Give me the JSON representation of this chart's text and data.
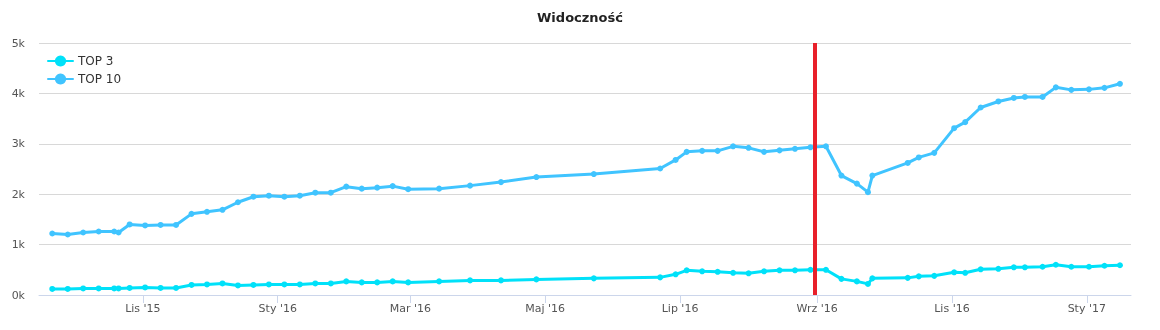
{
  "chart_data": {
    "type": "line",
    "title": "Widoczność",
    "x": [
      "2015-09-21",
      "2015-09-28",
      "2015-10-05",
      "2015-10-12",
      "2015-10-19",
      "2015-10-21",
      "2015-10-26",
      "2015-11-02",
      "2015-11-09",
      "2015-11-16",
      "2015-11-23",
      "2015-11-30",
      "2015-12-07",
      "2015-12-14",
      "2015-12-21",
      "2015-12-28",
      "2016-01-04",
      "2016-01-11",
      "2016-01-18",
      "2016-01-25",
      "2016-02-01",
      "2016-02-08",
      "2016-02-15",
      "2016-02-22",
      "2016-02-29",
      "2016-03-14",
      "2016-03-28",
      "2016-04-11",
      "2016-04-27",
      "2016-05-23",
      "2016-06-22",
      "2016-06-29",
      "2016-07-04",
      "2016-07-11",
      "2016-07-18",
      "2016-07-25",
      "2016-08-01",
      "2016-08-08",
      "2016-08-15",
      "2016-08-22",
      "2016-08-29",
      "2016-09-05",
      "2016-09-12",
      "2016-09-19",
      "2016-09-24",
      "2016-09-26",
      "2016-10-12",
      "2016-10-17",
      "2016-10-24",
      "2016-11-02",
      "2016-11-07",
      "2016-11-14",
      "2016-11-22",
      "2016-11-29",
      "2016-12-04",
      "2016-12-12",
      "2016-12-18",
      "2016-12-25",
      "2017-01-02",
      "2017-01-09",
      "2017-01-16"
    ],
    "series": [
      {
        "name": "TOP 3",
        "color": "#00e1f9",
        "values": [
          120,
          120,
          130,
          130,
          130,
          130,
          140,
          150,
          140,
          140,
          200,
          210,
          230,
          190,
          200,
          210,
          210,
          210,
          230,
          230,
          270,
          250,
          250,
          270,
          250,
          270,
          290,
          290,
          310,
          330,
          350,
          410,
          490,
          470,
          460,
          440,
          430,
          470,
          490,
          490,
          500,
          500,
          320,
          270,
          220,
          330,
          340,
          370,
          380,
          450,
          440,
          510,
          520,
          550,
          550,
          560,
          600,
          560,
          560,
          580,
          590
        ]
      },
      {
        "name": "TOP 10",
        "color": "#40c4ff",
        "values": [
          1220,
          1200,
          1240,
          1260,
          1260,
          1240,
          1400,
          1380,
          1390,
          1390,
          1610,
          1650,
          1690,
          1840,
          1950,
          1970,
          1950,
          1970,
          2030,
          2030,
          2150,
          2110,
          2130,
          2160,
          2100,
          2110,
          2170,
          2240,
          2340,
          2400,
          2510,
          2680,
          2840,
          2860,
          2860,
          2950,
          2920,
          2840,
          2870,
          2900,
          2930,
          2950,
          2370,
          2210,
          2040,
          2370,
          2620,
          2730,
          2820,
          3310,
          3430,
          3720,
          3840,
          3910,
          3930,
          3930,
          4120,
          4070,
          4080,
          4110,
          4190
        ]
      }
    ],
    "xlim": [
      "2015-09-15",
      "2017-01-21"
    ],
    "xticks": [
      {
        "value": "2015-11-01",
        "label": "Lis '15"
      },
      {
        "value": "2016-01-01",
        "label": "Sty '16"
      },
      {
        "value": "2016-03-01",
        "label": "Mar '16"
      },
      {
        "value": "2016-05-01",
        "label": "Maj '16"
      },
      {
        "value": "2016-07-01",
        "label": "Lip '16"
      },
      {
        "value": "2016-09-01",
        "label": "Wrz '16"
      },
      {
        "value": "2016-11-01",
        "label": "Lis '16"
      },
      {
        "value": "2017-01-01",
        "label": "Sty '17"
      }
    ],
    "ylim": [
      0,
      5000
    ],
    "yticks": [
      {
        "value": 0,
        "label": "0k"
      },
      {
        "value": 1000,
        "label": "1k"
      },
      {
        "value": 2000,
        "label": "2k"
      },
      {
        "value": 3000,
        "label": "3k"
      },
      {
        "value": 4000,
        "label": "4k"
      },
      {
        "value": 5000,
        "label": "5k"
      }
    ],
    "ref_lines": [
      {
        "axis": "x",
        "value": "2016-08-31",
        "color": "#e8202a"
      }
    ],
    "grid": "y",
    "legend": "top left",
    "marker": "circle",
    "line_style": "solid"
  }
}
